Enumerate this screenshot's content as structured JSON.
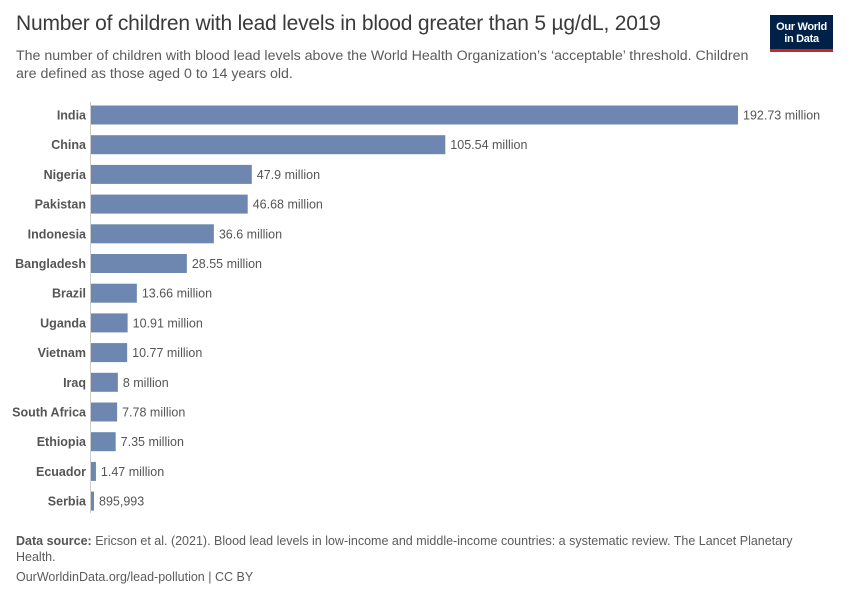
{
  "header": {
    "title": "Number of children with lead levels in blood greater than 5 µg/dL, 2019",
    "subtitle": "The number of children with blood lead levels above the World Health Organization’s ‘acceptable’ threshold. Children are defined as those aged 0 to 14 years old.",
    "logo_line1": "Our World",
    "logo_line2": "in Data"
  },
  "colors": {
    "bar": "#6d87b1",
    "logo_bg": "#002147",
    "logo_accent": "#ce261e"
  },
  "chart_data": {
    "type": "bar",
    "orientation": "horizontal",
    "title": "Number of children with lead levels in blood greater than 5 µg/dL, 2019",
    "categories": [
      "India",
      "China",
      "Nigeria",
      "Pakistan",
      "Indonesia",
      "Bangladesh",
      "Brazil",
      "Uganda",
      "Vietnam",
      "Iraq",
      "South Africa",
      "Ethiopia",
      "Ecuador",
      "Serbia"
    ],
    "values": [
      192730000,
      105540000,
      47900000,
      46680000,
      36600000,
      28550000,
      13660000,
      10910000,
      10770000,
      8000000,
      7780000,
      7350000,
      1470000,
      895993
    ],
    "labels": [
      "192.73 million",
      "105.54 million",
      "47.9 million",
      "46.68 million",
      "36.6 million",
      "28.55 million",
      "13.66 million",
      "10.91 million",
      "10.77 million",
      "8 million",
      "7.78 million",
      "7.35 million",
      "1.47 million",
      "895,993"
    ],
    "grid": false
  },
  "footer": {
    "source_label": "Data source:",
    "source_text": "Ericson et al. (2021). Blood lead levels in low-income and middle-income countries: a systematic review. The Lancet Planetary Health.",
    "url_license": "OurWorldinData.org/lead-pollution | CC BY"
  }
}
